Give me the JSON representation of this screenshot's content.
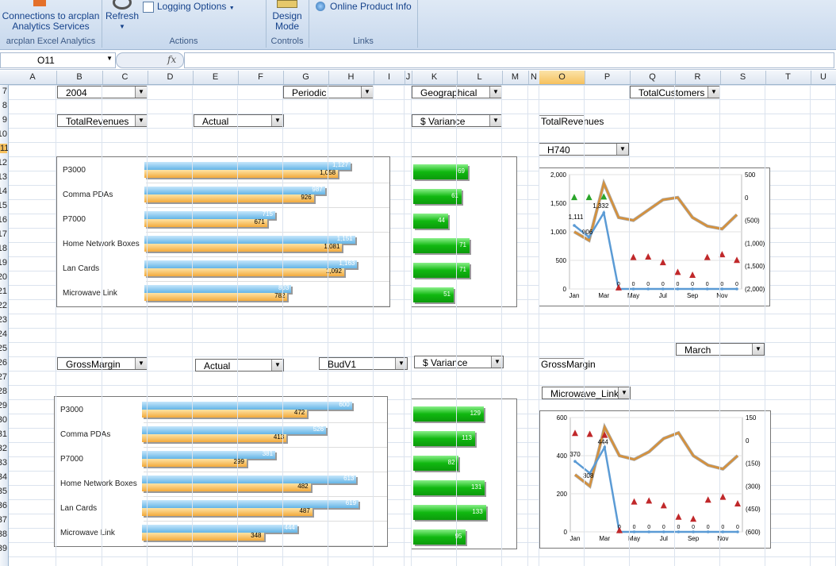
{
  "ribbon": {
    "connections_line1": "Connections to arcplan",
    "connections_line2": "Analytics Services",
    "group1_name": "arcplan Excel Analytics",
    "refresh": "Refresh",
    "logging_options": "Logging Options",
    "group2_name": "Actions",
    "design_line1": "Design",
    "design_line2": "Mode",
    "group3_name": "Controls",
    "online_info": "Online Product Info",
    "group4_name": "Links"
  },
  "formula_bar": {
    "name_box": "O11",
    "fx": "fx",
    "content": ""
  },
  "columns": [
    "A",
    "B",
    "C",
    "D",
    "E",
    "F",
    "G",
    "H",
    "I",
    "J",
    "K",
    "L",
    "M",
    "N",
    "O",
    "P",
    "Q",
    "R",
    "S",
    "T",
    "U"
  ],
  "selected_column": "O",
  "rows": [
    "7",
    "8",
    "9",
    "10",
    "11",
    "12",
    "13",
    "14",
    "15",
    "16",
    "17",
    "18",
    "19",
    "20",
    "21",
    "22",
    "23",
    "24",
    "25",
    "26",
    "27",
    "28",
    "29",
    "30",
    "31",
    "32",
    "33",
    "34",
    "35",
    "36",
    "37",
    "38",
    "39"
  ],
  "selected_row": "11",
  "controls_top": {
    "year": "2004",
    "periodic": "Periodic",
    "geographical": "Geographical",
    "total_customers": "TotalCustomers",
    "measure": "TotalRevenues",
    "version": "Actual",
    "variance": "$ Variance",
    "label_total_revenues": "TotalRevenues",
    "product": "H740"
  },
  "controls_bottom": {
    "measure": "GrossMargin",
    "version": "Actual",
    "budget": "BudV1",
    "variance": "$ Variance",
    "month": "March",
    "label_gross_margin": "GrossMargin",
    "product": "Microwave_Link"
  },
  "top_bars": {
    "categories": [
      "P3000",
      "Comma PDAs",
      "P7000",
      "Home Network Boxes",
      "Lan Cards",
      "Microwave Link"
    ],
    "blue": [
      1127,
      987,
      715,
      1151,
      1163,
      803
    ],
    "blue_labels": [
      "1,127",
      "987",
      "715",
      "1,151",
      "1,163",
      "803"
    ],
    "orange": [
      1058,
      926,
      671,
      1081,
      1092,
      782
    ],
    "orange_labels": [
      "1,058",
      "926",
      "671",
      "1,081",
      "1,092",
      "782"
    ],
    "variance": [
      69,
      61,
      44,
      71,
      71,
      51
    ],
    "variance_labels": [
      "69",
      "61",
      "44",
      "71",
      "71",
      "51"
    ]
  },
  "bottom_bars": {
    "categories": [
      "P3000",
      "Comma PDAs",
      "P7000",
      "Home Network Boxes",
      "Lan Cards",
      "Microwave Link"
    ],
    "blue": [
      600,
      526,
      381,
      613,
      619,
      444
    ],
    "blue_labels": [
      "600",
      "526",
      "381",
      "613",
      "619",
      "444"
    ],
    "orange": [
      472,
      413,
      299,
      482,
      487,
      348
    ],
    "orange_labels": [
      "472",
      "413",
      "299",
      "482",
      "487",
      "348"
    ],
    "variance": [
      129,
      113,
      82,
      131,
      133,
      95
    ],
    "variance_labels": [
      "129",
      "113",
      "82",
      "131",
      "133",
      "95"
    ]
  },
  "chart_data": [
    {
      "type": "line",
      "x": [
        "Jan",
        "Mar",
        "May",
        "Jul",
        "Sep",
        "Nov"
      ],
      "y_left_ticks": [
        "2,000",
        "1,500",
        "1,000",
        "500",
        "0"
      ],
      "y_right_ticks": [
        "500",
        "0",
        "(500)",
        "(1,000)",
        "(1,500)",
        "(2,000)"
      ],
      "annotations": [
        "1,111",
        "906",
        "1,332",
        "0"
      ],
      "ylim": [
        0,
        2000
      ]
    },
    {
      "type": "line",
      "x": [
        "Jan",
        "Mar",
        "May",
        "Jul",
        "Sep",
        "Nov"
      ],
      "y_left_ticks": [
        "600",
        "400",
        "200",
        "0"
      ],
      "y_right_ticks": [
        "150",
        "0",
        "(150)",
        "(300)",
        "(450)",
        "(600)"
      ],
      "annotations": [
        "370",
        "308",
        "444",
        "0"
      ],
      "ylim": [
        0,
        600
      ]
    }
  ],
  "colors": {
    "blue": "#64b5e6",
    "orange": "#f2a93b",
    "green": "#10b810",
    "line_orange": "#d6913b",
    "line_blue": "#5b9bd5",
    "tri_red": "#c0282a",
    "tri_green": "#2aa52a"
  }
}
